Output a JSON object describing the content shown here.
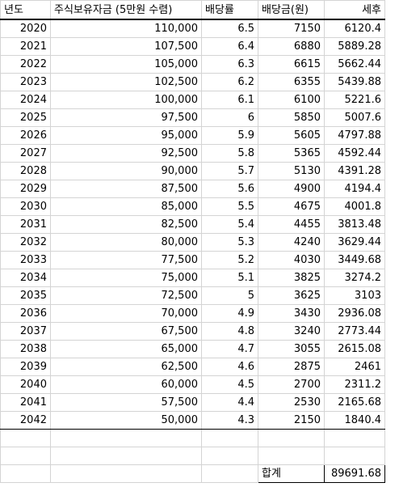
{
  "headers": [
    "년도",
    "주식보유자금 (5만원 수렴)",
    "배당률",
    "배당금(원)",
    "세후"
  ],
  "rows": [
    [
      "2020",
      "110,000",
      "6.5",
      "7150",
      "6120.4"
    ],
    [
      "2021",
      "107,500",
      "6.4",
      "6880",
      "5889.28"
    ],
    [
      "2022",
      "105,000",
      "6.3",
      "6615",
      "5662.44"
    ],
    [
      "2023",
      "102,500",
      "6.2",
      "6355",
      "5439.88"
    ],
    [
      "2024",
      "100,000",
      "6.1",
      "6100",
      "5221.6"
    ],
    [
      "2025",
      "97,500",
      "6",
      "5850",
      "5007.6"
    ],
    [
      "2026",
      "95,000",
      "5.9",
      "5605",
      "4797.88"
    ],
    [
      "2027",
      "92,500",
      "5.8",
      "5365",
      "4592.44"
    ],
    [
      "2028",
      "90,000",
      "5.7",
      "5130",
      "4391.28"
    ],
    [
      "2029",
      "87,500",
      "5.6",
      "4900",
      "4194.4"
    ],
    [
      "2030",
      "85,000",
      "5.5",
      "4675",
      "4001.8"
    ],
    [
      "2031",
      "82,500",
      "5.4",
      "4455",
      "3813.48"
    ],
    [
      "2032",
      "80,000",
      "5.3",
      "4240",
      "3629.44"
    ],
    [
      "2033",
      "77,500",
      "5.2",
      "4030",
      "3449.68"
    ],
    [
      "2034",
      "75,000",
      "5.1",
      "3825",
      "3274.2"
    ],
    [
      "2035",
      "72,500",
      "5",
      "3625",
      "3103"
    ],
    [
      "2036",
      "70,000",
      "4.9",
      "3430",
      "2936.08"
    ],
    [
      "2037",
      "67,500",
      "4.8",
      "3240",
      "2773.44"
    ],
    [
      "2038",
      "65,000",
      "4.7",
      "3055",
      "2615.08"
    ],
    [
      "2039",
      "62,500",
      "4.6",
      "2875",
      "2461"
    ],
    [
      "2040",
      "60,000",
      "4.5",
      "2700",
      "2311.2"
    ],
    [
      "2041",
      "57,500",
      "4.4",
      "2530",
      "2165.68"
    ],
    [
      "2042",
      "50,000",
      "4.3",
      "2150",
      "1840.4"
    ]
  ],
  "total": {
    "label": "합계",
    "value": "89691.68"
  }
}
